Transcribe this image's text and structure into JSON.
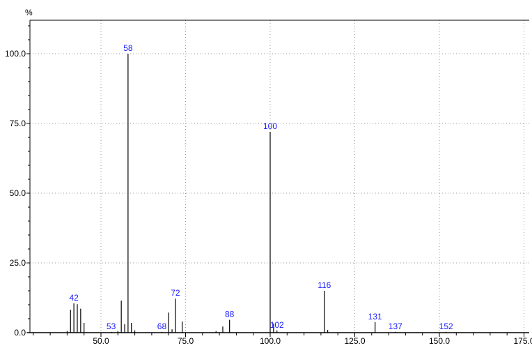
{
  "chart_data": {
    "type": "bar",
    "ylabel": "%",
    "xlim": [
      30,
      175
    ],
    "ylim": [
      0,
      112
    ],
    "x_ticks": [
      "50.0",
      "75.0",
      "100.0",
      "125.0",
      "150.0",
      "175.0"
    ],
    "y_ticks": [
      "0.0",
      "25.0",
      "50.0",
      "75.0",
      "100.0"
    ],
    "grid": true,
    "peaks": [
      {
        "x": 40,
        "y": 0.6
      },
      {
        "x": 41,
        "y": 8.2
      },
      {
        "x": 42,
        "y": 10.5,
        "label": "42"
      },
      {
        "x": 43,
        "y": 10.2
      },
      {
        "x": 44,
        "y": 8.6
      },
      {
        "x": 45,
        "y": 3.5
      },
      {
        "x": 53,
        "y": 0.3,
        "label": "53"
      },
      {
        "x": 55,
        "y": 0.6
      },
      {
        "x": 56,
        "y": 11.5
      },
      {
        "x": 57,
        "y": 3.0
      },
      {
        "x": 58,
        "y": 100,
        "label": "58"
      },
      {
        "x": 59,
        "y": 3.5
      },
      {
        "x": 60,
        "y": 0.8
      },
      {
        "x": 68,
        "y": 0.3,
        "label": "68"
      },
      {
        "x": 70,
        "y": 7.2
      },
      {
        "x": 71,
        "y": 1.2
      },
      {
        "x": 72,
        "y": 12.2,
        "label": "72"
      },
      {
        "x": 74,
        "y": 4.0
      },
      {
        "x": 84,
        "y": 0.5
      },
      {
        "x": 86,
        "y": 2.2
      },
      {
        "x": 88,
        "y": 4.6,
        "label": "88"
      },
      {
        "x": 100,
        "y": 72,
        "label": "100"
      },
      {
        "x": 101,
        "y": 3.3
      },
      {
        "x": 102,
        "y": 0.8,
        "label": "102"
      },
      {
        "x": 116,
        "y": 15,
        "label": "116"
      },
      {
        "x": 117,
        "y": 1.0
      },
      {
        "x": 131,
        "y": 3.8,
        "label": "131"
      },
      {
        "x": 137,
        "y": 0.3,
        "label": "137"
      },
      {
        "x": 152,
        "y": 0.3,
        "label": "152"
      }
    ]
  },
  "colors": {
    "bar": "#000000",
    "axis": "#000000",
    "grid": "#9a9a9a",
    "label": "#1a1aff"
  }
}
